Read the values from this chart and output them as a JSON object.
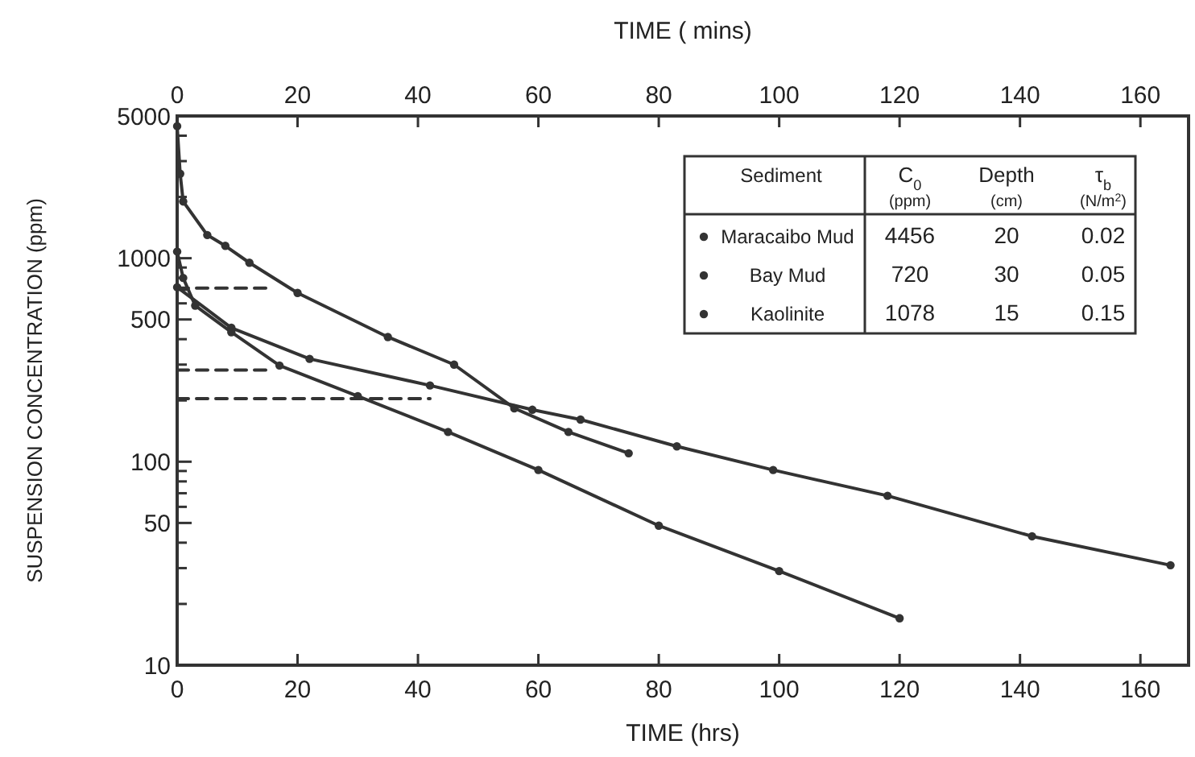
{
  "chart_data": {
    "type": "line",
    "xlabel": "TIME  (hrs)",
    "x2label": "TIME ( mins)",
    "ylabel": "SUSPENSION  CONCENTRATION (ppm)",
    "log": "y",
    "legend": "top right",
    "legend_title": "Sediment",
    "marker": "circle",
    "line_style": "solid",
    "xlim": [
      0,
      168
    ],
    "xticks": [
      0,
      20,
      40,
      60,
      80,
      100,
      120,
      140,
      160
    ],
    "x2lim": [
      0,
      168
    ],
    "x2ticks": [
      0,
      20,
      40,
      60,
      80,
      100,
      120,
      140,
      160
    ],
    "ylim": [
      10,
      5000
    ],
    "yticks": [
      10,
      {
        "value": 20,
        "label": null
      },
      {
        "value": 30,
        "label": null
      },
      {
        "value": 40,
        "label": null
      },
      50,
      {
        "value": 60,
        "label": null
      },
      {
        "value": 70,
        "label": null
      },
      {
        "value": 80,
        "label": null
      },
      {
        "value": 90,
        "label": null
      },
      100,
      {
        "value": 200,
        "label": null
      },
      {
        "value": 300,
        "label": null
      },
      {
        "value": 400,
        "label": null
      },
      500,
      {
        "value": 600,
        "label": null
      },
      {
        "value": 700,
        "label": null
      },
      {
        "value": 800,
        "label": null
      },
      {
        "value": 900,
        "label": null
      },
      1000,
      {
        "value": 2000,
        "label": null
      },
      {
        "value": 3000,
        "label": null
      },
      {
        "value": 4000,
        "label": null
      },
      5000
    ],
    "annotations": [
      "C$_{0}$",
      "Depth",
      "τ$_{b}$",
      "(ppm)",
      "(cm)",
      "(N/m$^{2}$)",
      "4456",
      "20",
      "0.02",
      "720",
      "30",
      "0.05",
      "1078",
      "15",
      "0.15"
    ],
    "series": [
      {
        "name": "Maracaibo Mud",
        "color": "#333333",
        "x": [
          0,
          0.5,
          1,
          5,
          8,
          12,
          20,
          35,
          46,
          56,
          65,
          75
        ],
        "values": [
          4456,
          2600,
          1900,
          1300,
          1150,
          950,
          675,
          410,
          300,
          183,
          140,
          110
        ]
      },
      {
        "name": "Bay Mud",
        "color": "#333333",
        "x": [
          0,
          2,
          9,
          22,
          42,
          59,
          67,
          83,
          99,
          118,
          142,
          165
        ],
        "values": [
          720,
          null,
          455,
          320,
          237,
          180,
          161,
          119,
          91,
          68,
          43,
          31
        ]
      },
      {
        "name": "Kaolinite",
        "color": "#333333",
        "x": [
          0,
          1,
          3,
          9,
          17,
          30,
          45,
          60,
          80,
          100,
          120
        ],
        "values": [
          1078,
          800,
          585,
          433,
          297,
          210,
          140,
          91,
          48.5,
          29,
          17
        ]
      },
      {
        "type": "line",
        "color": "#333333",
        "line_style": "dashed",
        "marker": "none",
        "x": [
          0,
          15
        ],
        "values": [
          713,
          713
        ]
      },
      {
        "type": "line",
        "color": "#333333",
        "line_style": "dashed",
        "marker": "none",
        "x": [
          0,
          16
        ],
        "values": [
          282,
          282
        ]
      },
      {
        "type": "line",
        "color": "#333333",
        "line_style": "dashed",
        "marker": "none",
        "x": [
          0,
          42
        ],
        "values": [
          204,
          204
        ]
      }
    ]
  }
}
